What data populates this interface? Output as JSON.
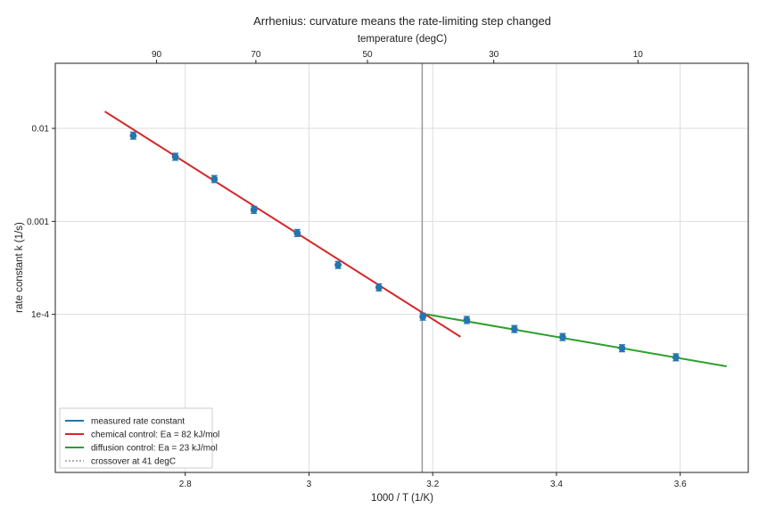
{
  "chart_data": {
    "type": "scatter",
    "title": "Arrhenius: curvature means the rate-limiting step changed",
    "xlabel": "1000 / T  (1/K)",
    "ylabel": "rate constant k (1/s)",
    "top_axis_label": "temperature (degC)",
    "xlim": [
      2.59,
      3.71
    ],
    "ylim_log10": [
      -5.7,
      -1.3
    ],
    "x_ticks": [
      2.8,
      3.0,
      3.2,
      3.4,
      3.6
    ],
    "x_tick_labels": [
      "2.8",
      "3",
      "3.2",
      "3.4",
      "3.6"
    ],
    "y_ticks_log10": [
      -2,
      -3,
      -4
    ],
    "y_tick_labels": [
      "0.01",
      "0.001",
      "1e-4"
    ],
    "top_ticks_degC": [
      90,
      70,
      50,
      30,
      10
    ],
    "top_tick_labels": [
      "90",
      "70",
      "50",
      "30",
      "10"
    ],
    "grid": true,
    "legend_position": "bottom-left",
    "series": [
      {
        "name": "measured rate constant",
        "kind": "points-with-errorbars",
        "color": "#1f77b4",
        "x": [
          2.716,
          2.784,
          2.847,
          2.911,
          2.981,
          3.047,
          3.113,
          3.184,
          3.255,
          3.332,
          3.41,
          3.506,
          3.593
        ],
        "y": [
          0.00835,
          0.00495,
          0.00285,
          0.00133,
          0.00075,
          0.00034,
          0.000195,
          9.45e-05,
          8.7e-05,
          6.95e-05,
          5.7e-05,
          4.32e-05,
          3.45e-05
        ],
        "err_rel": 0.09
      },
      {
        "name": "chemical control: Ea = 82 kJ/mol",
        "kind": "line",
        "color": "#d62728",
        "x": [
          2.67,
          3.245
        ],
        "y": [
          0.0152,
          5.73e-05
        ]
      },
      {
        "name": "diffusion control: Ea = 23 kJ/mol",
        "kind": "line",
        "color": "#2ca02c",
        "x": [
          3.19,
          3.675
        ],
        "y": [
          0.0001,
          2.76e-05
        ]
      },
      {
        "name": "crossover at 41 degC",
        "kind": "vline",
        "color": "#999999",
        "x": 3.183
      }
    ]
  }
}
